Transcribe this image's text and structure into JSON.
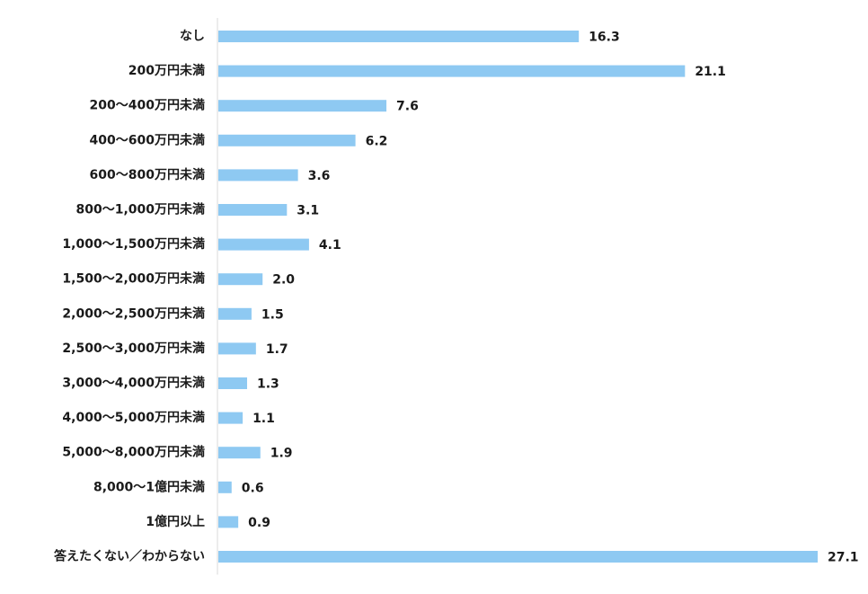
{
  "chart_data": {
    "type": "bar",
    "orientation": "horizontal",
    "categories": [
      "なし",
      "200万円未満",
      "200～400万円未満",
      "400～600万円未満",
      "600～800万円未満",
      "800～1,000万円未満",
      "1,000～1,500万円未満",
      "1,500～2,000万円未満",
      "2,000～2,500万円未満",
      "2,500～3,000万円未満",
      "3,000～4,000万円未満",
      "4,000～5,000万円未満",
      "5,000～8,000万円未満",
      "8,000～1億円未満",
      "1億円以上",
      "答えたくない／わからない"
    ],
    "values": [
      16.3,
      21.1,
      7.6,
      6.2,
      3.6,
      3.1,
      4.1,
      2.0,
      1.5,
      1.7,
      1.3,
      1.1,
      1.9,
      0.6,
      0.9,
      27.1
    ],
    "value_labels": [
      "16.3",
      "21.1",
      "7.6",
      "6.2",
      "3.6",
      "3.1",
      "4.1",
      "2.0",
      "1.5",
      "1.7",
      "1.3",
      "1.1",
      "1.9",
      "0.6",
      "0.9",
      "27.1"
    ],
    "title": "",
    "xlabel": "",
    "ylabel": "",
    "xlim": [
      0,
      27.1
    ],
    "grid": false,
    "legend": "none",
    "colors": {
      "bar": "#8ec9f2",
      "axis": "#d9d9d9",
      "text": "#1a1a1a"
    }
  }
}
